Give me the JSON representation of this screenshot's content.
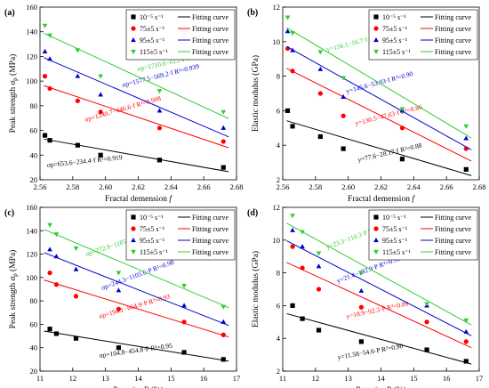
{
  "colors": {
    "black": "#000000",
    "red": "#ff0000",
    "blue": "#0000cc",
    "green": "#33cc33"
  },
  "chart_data": [
    {
      "panel_label": "(a)",
      "type": "scatter",
      "xlabel_text": "Fractal demension",
      "xlabel_sym": "f",
      "ylabel_text": "Peak strength",
      "ylabel_sym": "σ",
      "ylabel_sub": "p",
      "ylabel_unit": " (MPa)",
      "xlim": [
        2.56,
        2.68
      ],
      "ylim": [
        20,
        160
      ],
      "xticks": [
        "2.56",
        "2.58",
        "2.60",
        "2.62",
        "2.64",
        "2.66",
        "2.68"
      ],
      "yticks": [
        "20",
        "40",
        "60",
        "80",
        "100",
        "120",
        "140",
        "160"
      ],
      "legend_loc": "top-right",
      "fit_label": "Fitting curve",
      "series": [
        {
          "name": "10⁻⁵ s⁻¹",
          "color": "#000000",
          "marker": "square",
          "x": [
            2.563,
            2.566,
            2.583,
            2.597,
            2.633,
            2.672
          ],
          "y": [
            56,
            52,
            48,
            40,
            36,
            30
          ],
          "fit": {
            "a": 653.6,
            "b": 234.4
          },
          "equation": "σp=653.6−234.4·f  R²=0.919"
        },
        {
          "name": "75±5 s⁻¹",
          "color": "#ff0000",
          "marker": "circle",
          "x": [
            2.563,
            2.566,
            2.583,
            2.597,
            2.633,
            2.672
          ],
          "y": [
            104,
            94,
            84,
            75,
            62,
            51
          ],
          "fit": {
            "a": 1240.7,
            "b": 446.6
          },
          "equation": "σp=1240.7−446.6·f  R²=0.908"
        },
        {
          "name": "95±5 s⁻¹",
          "color": "#0000cc",
          "marker": "triangle-up",
          "x": [
            2.563,
            2.566,
            2.583,
            2.597,
            2.633,
            2.672
          ],
          "y": [
            124,
            118,
            104,
            89,
            76,
            62
          ],
          "fit": {
            "a": 1577.5,
            "b": 569.2
          },
          "equation": "σp=1577.5−569.2·f  R²=0.939"
        },
        {
          "name": "115±5 s⁻¹",
          "color": "#33cc33",
          "marker": "triangle-down",
          "x": [
            2.563,
            2.566,
            2.583,
            2.597,
            2.633,
            2.672
          ],
          "y": [
            145,
            137,
            125,
            104,
            92,
            75
          ],
          "fit": {
            "a": 1710.6,
            "b": 613.4
          },
          "equation": "σp=1710.6−613.4·f  R²=0.934"
        }
      ]
    },
    {
      "panel_label": "(b)",
      "type": "scatter",
      "xlabel_text": "Fractal demension",
      "xlabel_sym": "f",
      "ylabel_text": "Elastic modulus",
      "ylabel_sym": "",
      "ylabel_sub": "",
      "ylabel_unit": " (GPa)",
      "xlim": [
        2.56,
        2.68
      ],
      "ylim": [
        2,
        12
      ],
      "xticks": [
        "2.56",
        "2.58",
        "2.60",
        "2.62",
        "2.64",
        "2.66",
        "2.68"
      ],
      "yticks": [
        "2",
        "4",
        "6",
        "8",
        "10",
        "12"
      ],
      "legend_loc": "top-right",
      "fit_label": "Fitting curve",
      "series": [
        {
          "name": "10⁻⁵ s⁻¹",
          "color": "#000000",
          "marker": "square",
          "x": [
            2.563,
            2.566,
            2.583,
            2.597,
            2.633,
            2.672
          ],
          "y": [
            6.0,
            5.1,
            4.5,
            3.8,
            3.2,
            2.6
          ],
          "fit": {
            "a": 77.6,
            "b": 28.17
          },
          "equation": "y=77.6−28.17·f  R²=0.88"
        },
        {
          "name": "75±5 s⁻¹",
          "color": "#ff0000",
          "marker": "circle",
          "x": [
            2.563,
            2.566,
            2.583,
            2.597,
            2.633,
            2.672
          ],
          "y": [
            9.6,
            8.3,
            7.0,
            5.7,
            5.0,
            3.8
          ],
          "fit": {
            "a": 130.5,
            "b": 47.63
          },
          "equation": "y=130.5−47.63·f  R²=0.86"
        },
        {
          "name": "95±5 s⁻¹",
          "color": "#0000cc",
          "marker": "triangle-up",
          "x": [
            2.563,
            2.566,
            2.583,
            2.597,
            2.633,
            2.672
          ],
          "y": [
            10.6,
            9.5,
            8.4,
            6.8,
            6.0,
            4.4
          ],
          "fit": {
            "a": 145.6,
            "b": 53.03
          },
          "equation": "y=145.6−53.03·f  R²=0.90"
        },
        {
          "name": "115±5 s⁻¹",
          "color": "#33cc33",
          "marker": "triangle-down",
          "x": [
            2.563,
            2.566,
            2.583,
            2.597,
            2.633,
            2.672
          ],
          "y": [
            11.4,
            10.5,
            9.4,
            7.9,
            6.1,
            5.1
          ],
          "fit": {
            "a": 156.1,
            "b": 56.7
          },
          "equation": "y=156.1−56.7·f  R²=0.92"
        }
      ]
    },
    {
      "panel_label": "(c)",
      "type": "scatter",
      "xlabel_text": "Porosity",
      "xlabel_sym": "P",
      "xlabel_unit": " (%)",
      "ylabel_text": "Peak strength",
      "ylabel_sym": "σ",
      "ylabel_sub": "p",
      "ylabel_unit": " (MPa)",
      "xlim": [
        11,
        17
      ],
      "ylim": [
        20,
        160
      ],
      "xticks": [
        "11",
        "12",
        "13",
        "14",
        "15",
        "16",
        "17"
      ],
      "yticks": [
        "20",
        "40",
        "60",
        "80",
        "100",
        "120",
        "140",
        "160"
      ],
      "legend_loc": "top-right",
      "fit_label": "Fitting curve",
      "series": [
        {
          "name": "10⁻⁵ s⁻¹",
          "color": "#000000",
          "marker": "square",
          "x": [
            11.3,
            11.5,
            12.1,
            13.4,
            15.4,
            16.6
          ],
          "y": [
            56,
            52,
            48,
            40,
            36,
            30
          ],
          "fit": {
            "a": 104.8,
            "b": 4.548
          },
          "equation": "σp=104.8−454.8·P  R²=0.95"
        },
        {
          "name": "75±5 s⁻¹",
          "color": "#ff0000",
          "marker": "circle",
          "x": [
            11.3,
            11.5,
            12.1,
            13.4,
            15.4,
            16.6
          ],
          "y": [
            104,
            94,
            84,
            73,
            62,
            51
          ],
          "fit": {
            "a": 194.1,
            "b": 8.649
          },
          "equation": "σp=194.1−864.9·P  R²=0.93"
        },
        {
          "name": "95±5 s⁻¹",
          "color": "#0000cc",
          "marker": "triangle-up",
          "x": [
            11.3,
            11.5,
            12.1,
            13.4,
            15.4,
            16.6
          ],
          "y": [
            124,
            118,
            107,
            89,
            76,
            62
          ],
          "fit": {
            "a": 244.3,
            "b": 11.056
          },
          "equation": "σp=244.3−1105.6·P  R²=0.98"
        },
        {
          "name": "115±5 s⁻¹",
          "color": "#33cc33",
          "marker": "triangle-down",
          "x": [
            11.3,
            11.5,
            12.1,
            13.4,
            15.4,
            16.6
          ],
          "y": [
            145,
            137,
            125,
            104,
            93,
            75
          ],
          "fit": {
            "a": 272.9,
            "b": 11.851
          },
          "equation": "σp=272.9−1185.1·P  R²=0.95"
        }
      ]
    },
    {
      "panel_label": "(d)",
      "type": "scatter",
      "xlabel_text": "Porosity",
      "xlabel_sym": "P",
      "xlabel_unit": " (%)",
      "ylabel_text": "Elastic modulus",
      "ylabel_sym": "",
      "ylabel_sub": "",
      "ylabel_unit": " (GPa)",
      "xlim": [
        11,
        17
      ],
      "ylim": [
        2,
        12
      ],
      "xticks": [
        "11",
        "12",
        "13",
        "14",
        "15",
        "16",
        "17"
      ],
      "yticks": [
        "2",
        "4",
        "6",
        "8",
        "10",
        "12"
      ],
      "legend_loc": "top-right",
      "fit_label": "Fitting curve",
      "series": [
        {
          "name": "10⁻⁵ s⁻¹",
          "color": "#000000",
          "marker": "square",
          "x": [
            11.3,
            11.6,
            12.1,
            13.4,
            15.4,
            16.6
          ],
          "y": [
            6.0,
            5.2,
            4.5,
            3.8,
            3.3,
            2.6
          ],
          "fit": {
            "a": 11.58,
            "b": 0.546
          },
          "equation": "y=11.58−54.6·P  R²=0.90"
        },
        {
          "name": "75±5 s⁻¹",
          "color": "#ff0000",
          "marker": "circle",
          "x": [
            11.3,
            11.6,
            12.1,
            13.4,
            15.4,
            16.6
          ],
          "y": [
            9.6,
            8.3,
            7.0,
            5.9,
            5.0,
            3.8
          ],
          "fit": {
            "a": 18.9,
            "b": 0.923
          },
          "equation": "y=18.9−92.3·P  R²=0.89"
        },
        {
          "name": "95±5 s⁻¹",
          "color": "#0000cc",
          "marker": "triangle-up",
          "x": [
            11.3,
            11.6,
            12.1,
            13.4,
            15.4,
            16.6
          ],
          "y": [
            10.6,
            9.6,
            8.4,
            6.9,
            6.0,
            4.4
          ],
          "fit": {
            "a": 21.4,
            "b": 1.029
          },
          "equation": "y=21.4−102.9·P  R²=0.93"
        },
        {
          "name": "115±5 s⁻¹",
          "color": "#33cc33",
          "marker": "triangle-down",
          "x": [
            11.3,
            11.6,
            12.1,
            13.4,
            15.4,
            16.6
          ],
          "y": [
            11.5,
            10.5,
            9.2,
            8.0,
            6.1,
            5.1
          ],
          "fit": {
            "a": 23.3,
            "b": 1.103
          },
          "equation": "y=23.3−110.3·P  R²=0.96"
        }
      ]
    }
  ]
}
